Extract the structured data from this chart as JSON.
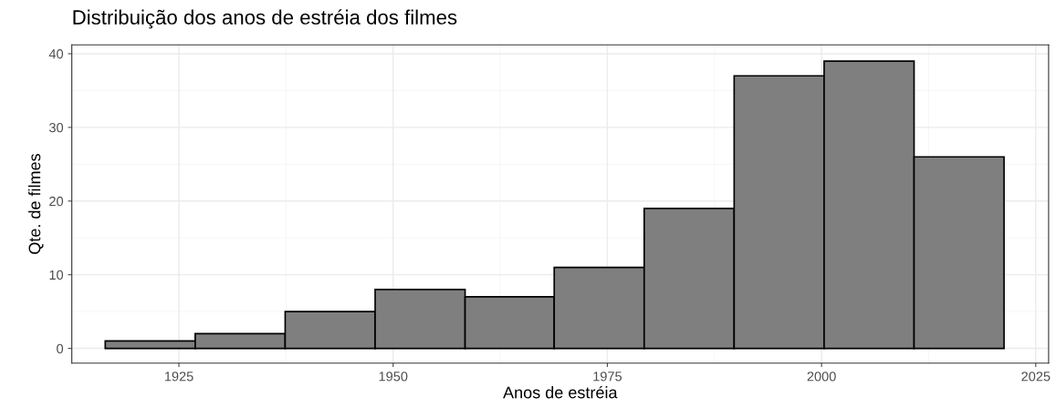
{
  "chart_data": {
    "type": "histogram",
    "title": "Distribuição dos anos de estréia dos filmes",
    "xlabel": "Anos de estréia",
    "ylabel": "Qte. de filmes",
    "bins": [
      1916.4,
      1926.9,
      1937.4,
      1947.9,
      1958.4,
      1968.8,
      1979.3,
      1989.8,
      2000.3,
      2010.8,
      2021.3
    ],
    "values": [
      1,
      2,
      5,
      8,
      7,
      11,
      19,
      37,
      39,
      26
    ],
    "color": "#7f7f7f",
    "xlim": [
      1912.5,
      2026.5
    ],
    "xticks": [
      1925,
      1950,
      1975,
      2000,
      2025
    ],
    "ylim": [
      -2,
      41.2
    ],
    "yticks": [
      0,
      10,
      20,
      30,
      40
    ],
    "grid": true
  }
}
